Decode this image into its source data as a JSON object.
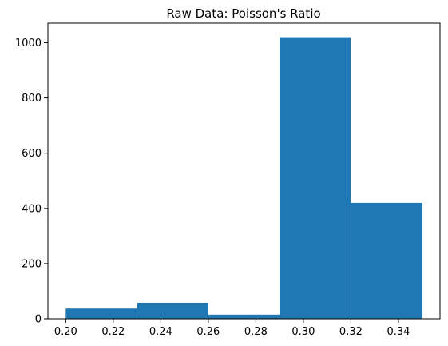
{
  "chart_data": {
    "type": "bar",
    "title": "Raw Data: Poisson's Ratio",
    "xlabel": "",
    "ylabel": "",
    "bins": [
      {
        "x_start": 0.2,
        "x_end": 0.23,
        "value": 37
      },
      {
        "x_start": 0.23,
        "x_end": 0.26,
        "value": 58
      },
      {
        "x_start": 0.26,
        "x_end": 0.29,
        "value": 15
      },
      {
        "x_start": 0.29,
        "x_end": 0.32,
        "value": 1020
      },
      {
        "x_start": 0.32,
        "x_end": 0.35,
        "value": 420
      }
    ],
    "xlim": [
      0.1925,
      0.3575
    ],
    "ylim": [
      0,
      1071
    ],
    "xticks": [
      "0.20",
      "0.22",
      "0.24",
      "0.26",
      "0.28",
      "0.30",
      "0.32",
      "0.34"
    ],
    "yticks": [
      "0",
      "200",
      "400",
      "600",
      "800",
      "1000"
    ],
    "bar_color": "#1f77b4",
    "grid": false,
    "legend": "none"
  }
}
